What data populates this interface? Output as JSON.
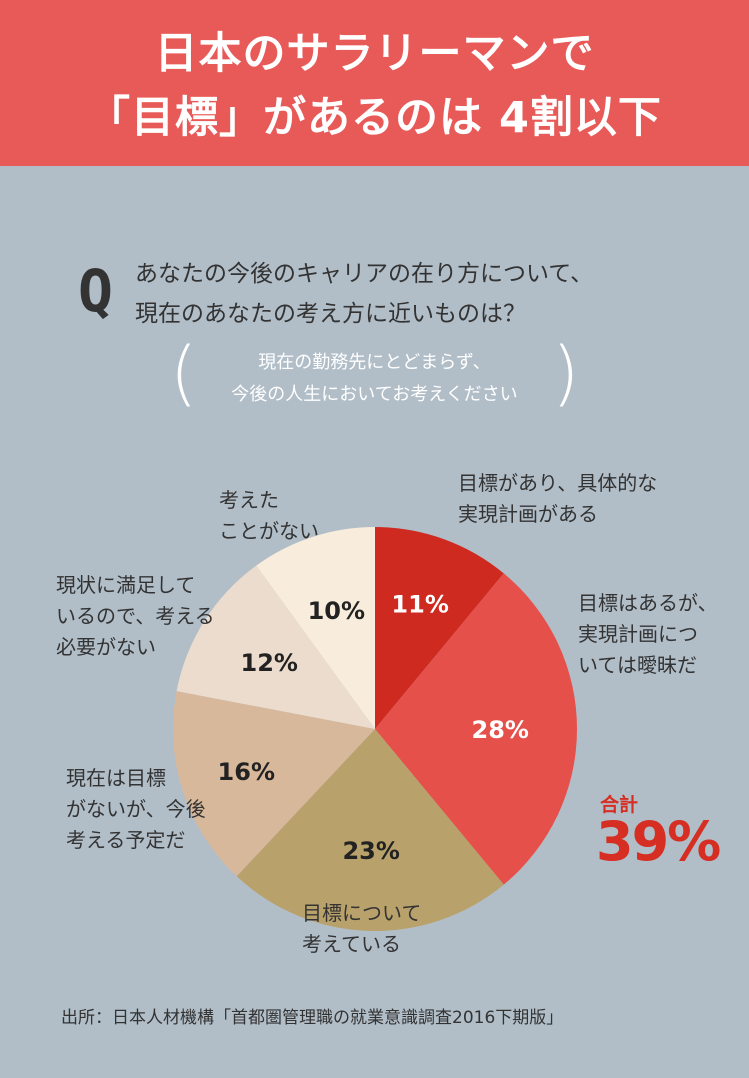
{
  "title": {
    "line1": "日本のサラリーマンで",
    "line2": "「目標」があるのは 4割以下"
  },
  "question": {
    "mark": "Q",
    "line1": "あなたの今後のキャリアの在り方について、",
    "line2": "現在のあなたの考え方に近いものは？"
  },
  "note": {
    "line1": "現在の勤務先にとどまらず、",
    "line2": "今後の人生においてお考えください"
  },
  "chart_data": {
    "type": "pie",
    "start_angle_deg": 0,
    "direction": "clockwise",
    "slices": [
      {
        "label": [
          "目標があり、具体的な",
          "実現計画がある"
        ],
        "value": 11,
        "display": "11%",
        "color": "#cf2a20",
        "text_color": "#ffffff"
      },
      {
        "label": [
          "目標はあるが、",
          "実現計画につ",
          "いては曖昧だ"
        ],
        "value": 28,
        "display": "28%",
        "color": "#e6504a",
        "text_color": "#ffffff"
      },
      {
        "label": [
          "目標について",
          "考えている"
        ],
        "value": 23,
        "display": "23%",
        "color": "#b8a16b",
        "text_color": "#222222"
      },
      {
        "label": [
          "現在は目標",
          "がないが、今後",
          "考える予定だ"
        ],
        "value": 16,
        "display": "16%",
        "color": "#d8b89a",
        "text_color": "#222222"
      },
      {
        "label": [
          "現状に満足して",
          "いるので、考える",
          "必要がない"
        ],
        "value": 12,
        "display": "12%",
        "color": "#ecdccd",
        "text_color": "#222222"
      },
      {
        "label": [
          "考えた",
          "ことがない"
        ],
        "value": 10,
        "display": "10%",
        "color": "#f8ecdc",
        "text_color": "#222222"
      }
    ],
    "total": {
      "label": "合計",
      "value": "39%"
    }
  },
  "source": "出所：日本人材機構「首都圏管理職の就業意識調査2016下期版」"
}
